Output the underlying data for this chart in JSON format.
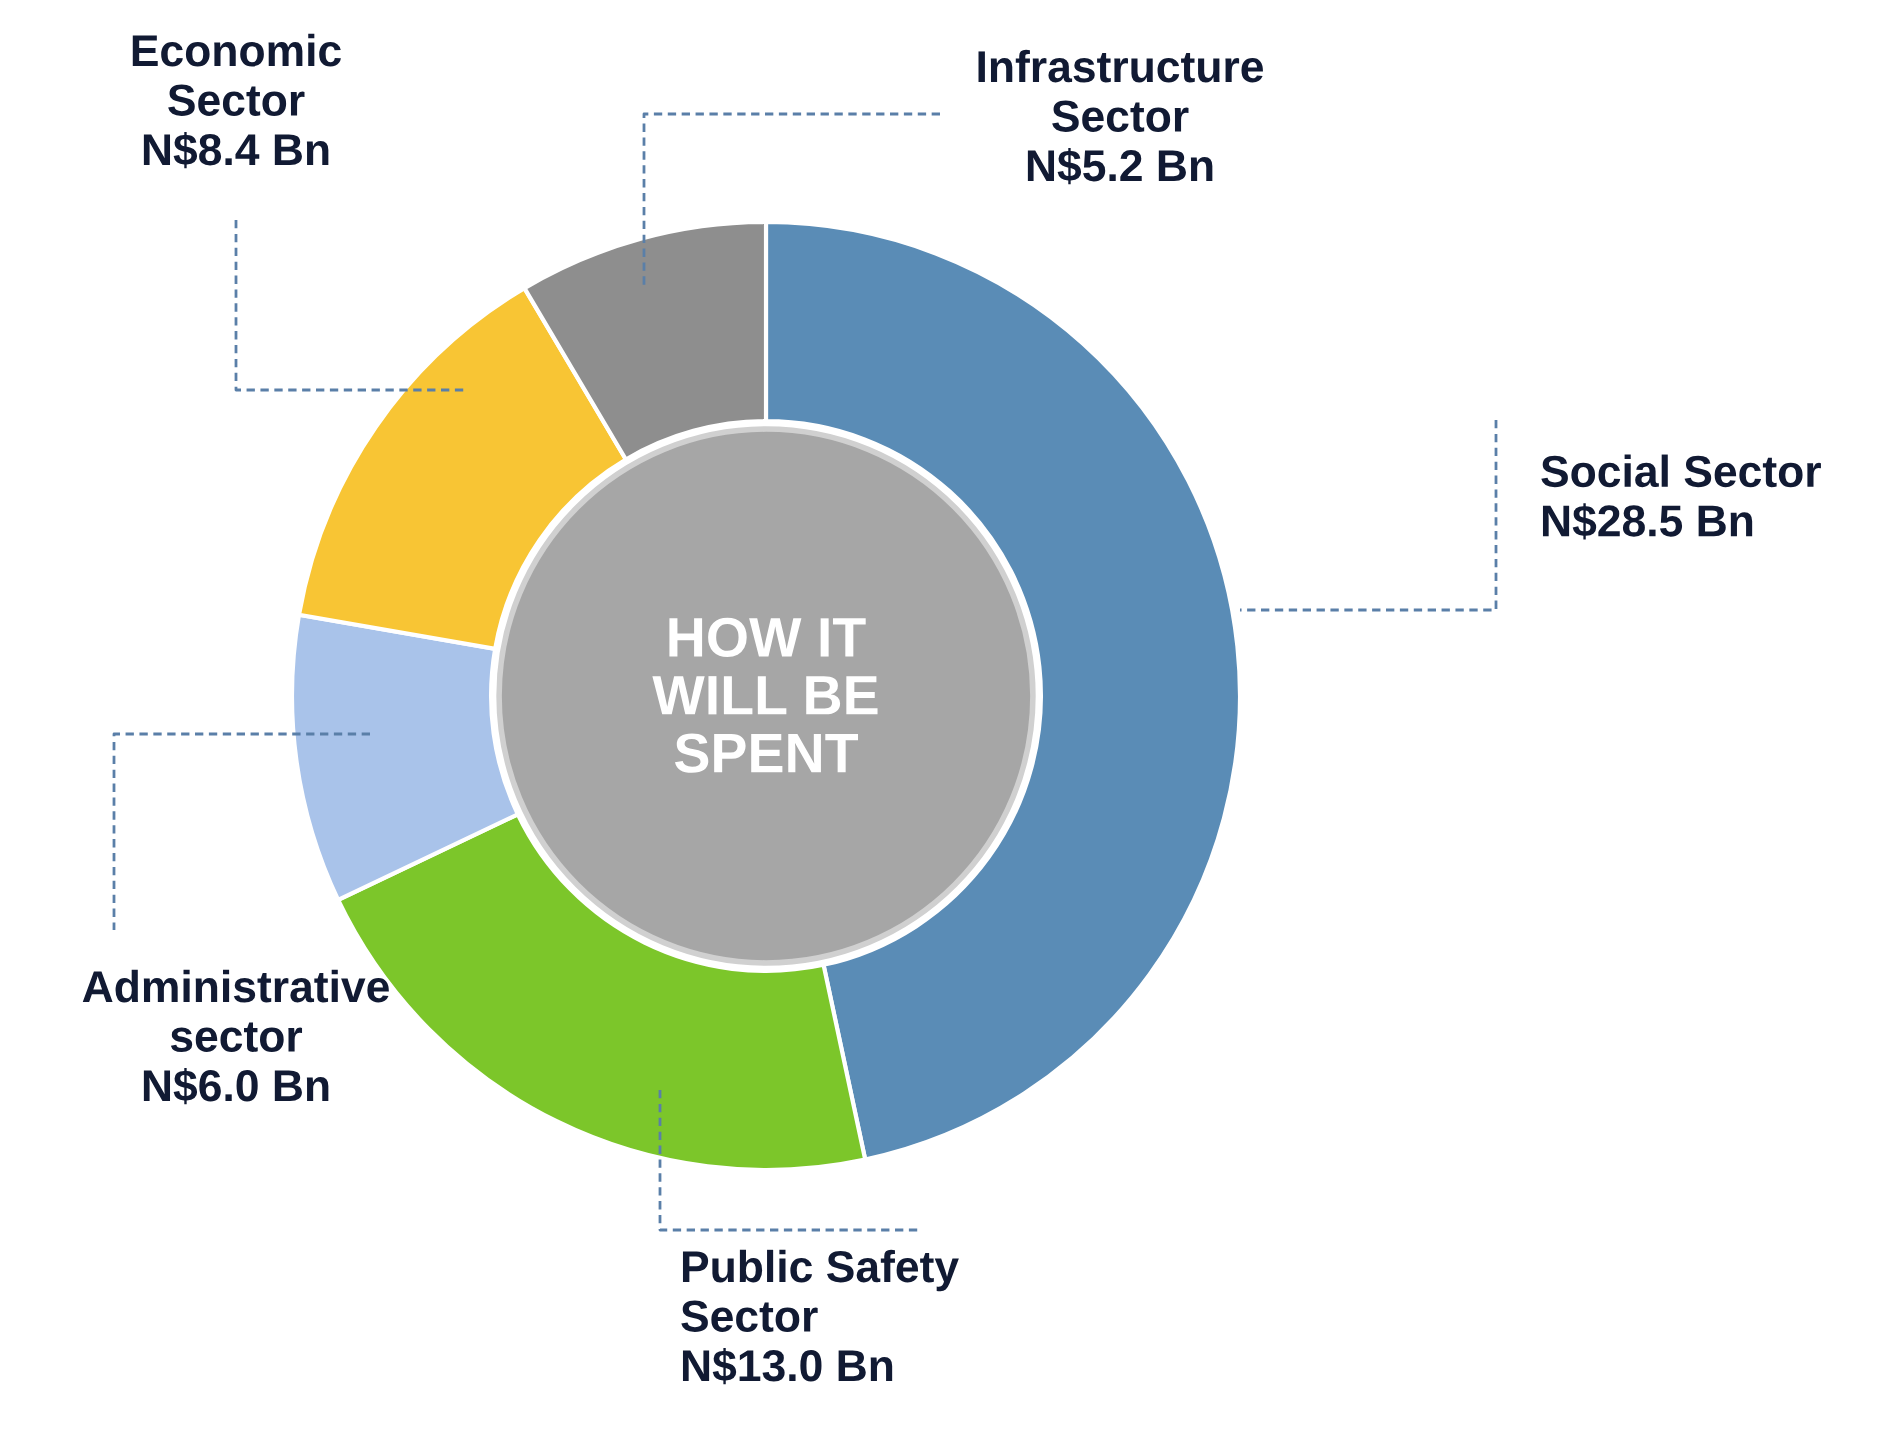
{
  "chart_data": {
    "type": "donut",
    "categories": [
      "Social Sector",
      "Public Safety\nSector",
      "Administrative\nsector",
      "Economic\nSector",
      "Infrastructure\nSector"
    ],
    "values": [
      28.5,
      13.0,
      6.0,
      8.4,
      5.2
    ],
    "value_labels": [
      "N$28.5 Bn",
      "N$13.0 Bn",
      "N$6.0 Bn",
      "N$8.4 Bn",
      "N$5.2 Bn"
    ],
    "colors": [
      "#5a8cb6",
      "#7cc62a",
      "#a9c3ea",
      "#f8c534",
      "#8e8e8e"
    ],
    "annotations": [
      "HOW IT\nWILL BE\nSPENT"
    ],
    "legend": false
  }
}
